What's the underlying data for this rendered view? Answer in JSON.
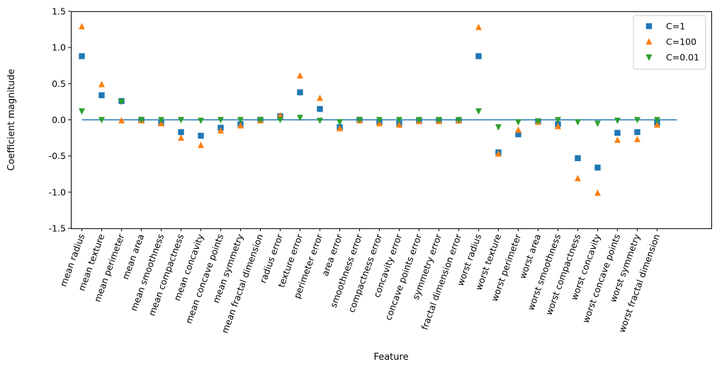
{
  "chart_data": {
    "type": "scatter",
    "title": "",
    "xlabel": "Feature",
    "ylabel": "Coefficient magnitude",
    "ylim": [
      -1.5,
      1.5
    ],
    "yticks": [
      "-1.5",
      "-1.0",
      "-0.5",
      "0.0",
      "0.5",
      "1.0",
      "1.5"
    ],
    "ytick_values": [
      -1.5,
      -1.0,
      -0.5,
      0.0,
      0.5,
      1.0,
      1.5
    ],
    "xtick_rotation": 70,
    "hline": {
      "y": 0,
      "color": "#1f77b4"
    },
    "legend_position": "top-right",
    "categories": [
      "mean radius",
      "mean texture",
      "mean perimeter",
      "mean area",
      "mean smoothness",
      "mean compactness",
      "mean concavity",
      "mean concave points",
      "mean symmetry",
      "mean fractal dimension",
      "radius error",
      "texture error",
      "perimeter error",
      "area error",
      "smoothness error",
      "compactness error",
      "concavity error",
      "concave points error",
      "symmetry error",
      "fractal dimension error",
      "worst radius",
      "worst texture",
      "worst perimeter",
      "worst area",
      "worst smoothness",
      "worst compactness",
      "worst concavity",
      "worst concave points",
      "worst symmetry",
      "worst fractal dimension"
    ],
    "series": [
      {
        "name": "C=1",
        "marker": "square",
        "color": "#1f77b4",
        "values": [
          0.88,
          0.34,
          0.26,
          0.0,
          -0.04,
          -0.17,
          -0.22,
          -0.11,
          -0.06,
          0.0,
          0.05,
          0.38,
          0.15,
          -0.1,
          0.0,
          -0.03,
          -0.05,
          -0.01,
          -0.01,
          -0.01,
          0.88,
          -0.45,
          -0.2,
          -0.02,
          -0.06,
          -0.53,
          -0.66,
          -0.18,
          -0.17,
          -0.04
        ]
      },
      {
        "name": "C=100",
        "marker": "triangle-up",
        "color": "#ff7f0e",
        "values": [
          1.29,
          0.49,
          -0.01,
          -0.01,
          -0.05,
          -0.25,
          -0.35,
          -0.15,
          -0.08,
          -0.01,
          0.06,
          0.61,
          0.3,
          -0.12,
          -0.01,
          -0.05,
          -0.07,
          -0.02,
          -0.02,
          -0.01,
          1.28,
          -0.47,
          -0.14,
          -0.03,
          -0.09,
          -0.81,
          -1.01,
          -0.28,
          -0.27,
          -0.07
        ]
      },
      {
        "name": "C=0.01",
        "marker": "triangle-down",
        "color": "#2ca02c",
        "values": [
          0.12,
          0.0,
          0.25,
          0.0,
          0.0,
          0.0,
          -0.01,
          0.0,
          0.0,
          0.0,
          0.0,
          0.03,
          -0.01,
          -0.03,
          0.0,
          0.0,
          0.0,
          0.0,
          0.0,
          0.0,
          0.12,
          -0.1,
          -0.03,
          -0.02,
          0.0,
          -0.03,
          -0.05,
          -0.01,
          0.0,
          0.0
        ]
      }
    ]
  }
}
